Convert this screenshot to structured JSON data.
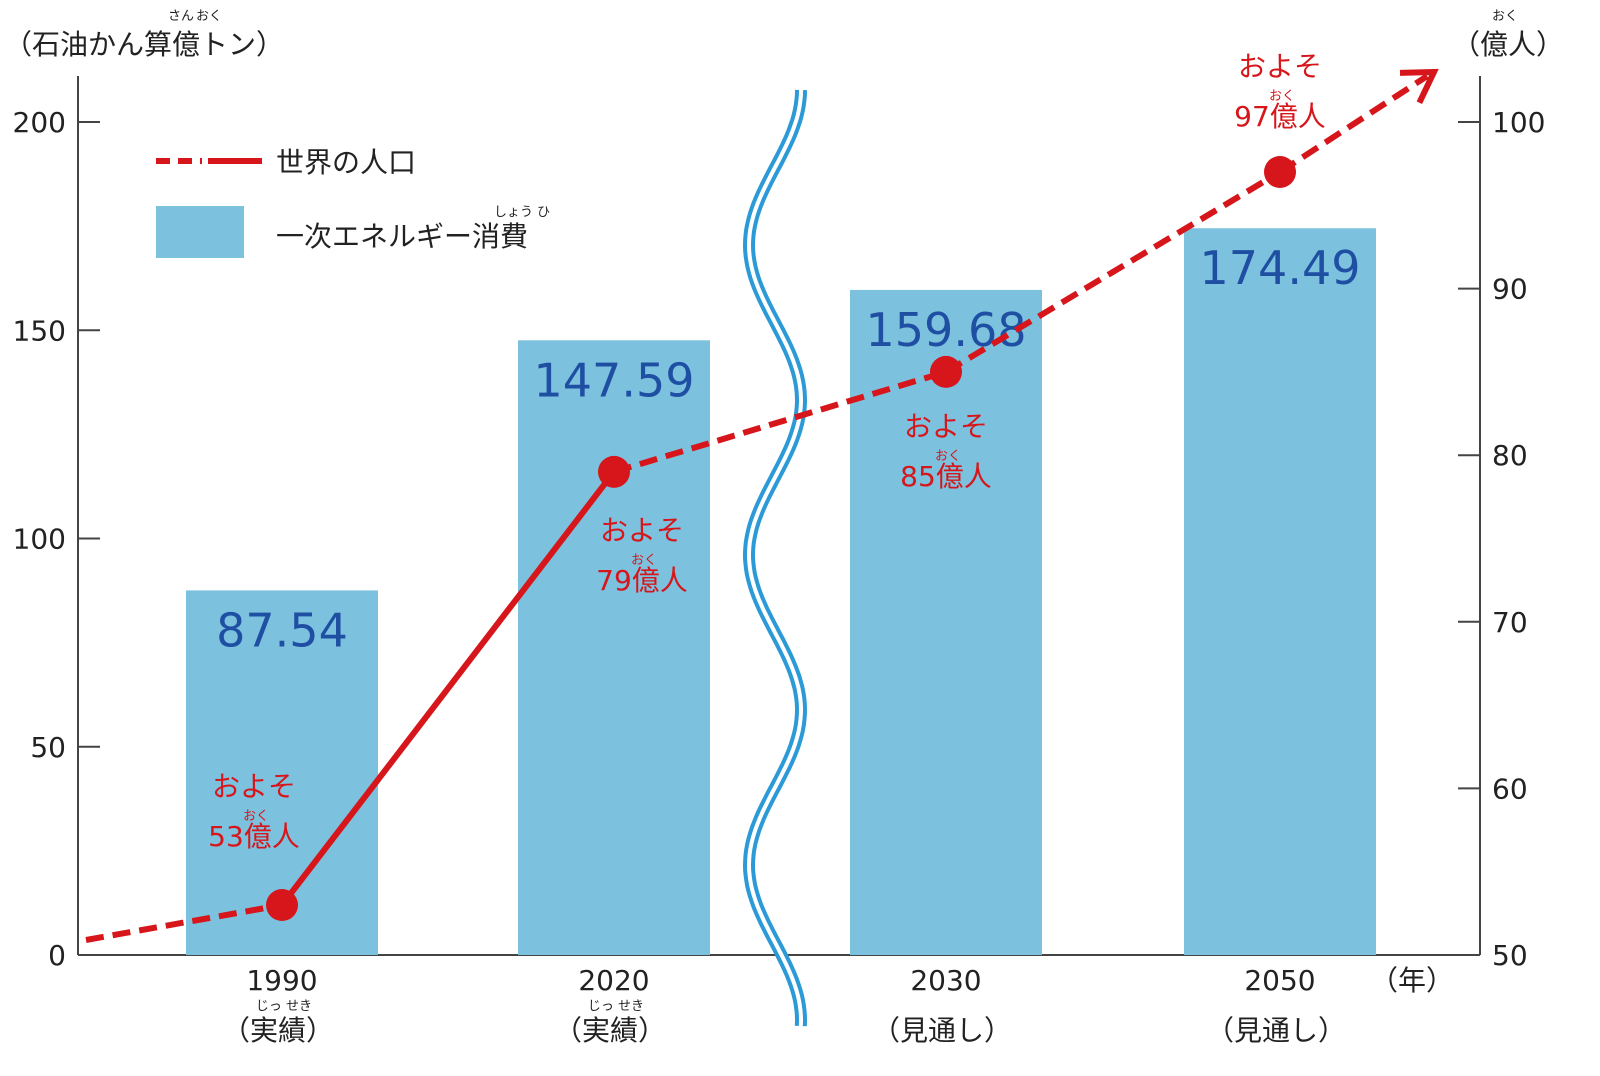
{
  "colors": {
    "bar": "#7cc1de",
    "bar_value_text": "#1f4fa3",
    "line": "#d7161b",
    "axis": "#444444",
    "break_mark": "#2b9ad6"
  },
  "chart_data": {
    "type": "bar",
    "left_axis": {
      "label": "（石油かん算億トン）",
      "ruby": [
        {
          "text": "さん",
          "over": "算"
        },
        {
          "text": "おく",
          "over": "億"
        }
      ],
      "range": [
        0,
        200
      ],
      "ticks": [
        "0",
        "50",
        "100",
        "150",
        "200"
      ],
      "tick_values": [
        0,
        50,
        100,
        150,
        200
      ]
    },
    "right_axis": {
      "label": "（億人）",
      "ruby": [
        {
          "text": "おく",
          "over": "億"
        }
      ],
      "range": [
        50,
        100
      ],
      "ticks": [
        "50",
        "60",
        "70",
        "80",
        "90",
        "100"
      ],
      "tick_values": [
        50,
        60,
        70,
        80,
        90,
        100
      ]
    },
    "x_unit": "（年）",
    "categories": [
      {
        "year": "1990",
        "note": "（実績）",
        "ruby": "じっ せき"
      },
      {
        "year": "2020",
        "note": "（実績）",
        "ruby": "じっ せき"
      },
      {
        "year": "2030",
        "note": "（見通し）",
        "ruby": ""
      },
      {
        "year": "2050",
        "note": "（見通し）",
        "ruby": ""
      }
    ],
    "series": [
      {
        "name": "一次エネルギー消費",
        "legend_ruby": "しょう ひ",
        "kind": "bar",
        "axis": "left",
        "values": [
          87.54,
          147.59,
          159.68,
          174.49
        ],
        "labels": [
          "87.54",
          "147.59",
          "159.68",
          "174.49"
        ]
      },
      {
        "name": "世界の人口",
        "kind": "line",
        "axis": "right",
        "values": [
          53,
          79,
          85,
          97
        ],
        "labels": [
          {
            "line1": "およそ",
            "ruby": "おく",
            "line2": "53億人"
          },
          {
            "line1": "およそ",
            "ruby": "おく",
            "line2": "79億人"
          },
          {
            "line1": "およそ",
            "ruby": "おく",
            "line2": "85億人"
          },
          {
            "line1": "およそ",
            "ruby": "おく",
            "line2": "97億人"
          }
        ]
      }
    ],
    "legend_position": "top-left",
    "axis_break_between": [
      "2020",
      "2030"
    ],
    "grid": false
  }
}
